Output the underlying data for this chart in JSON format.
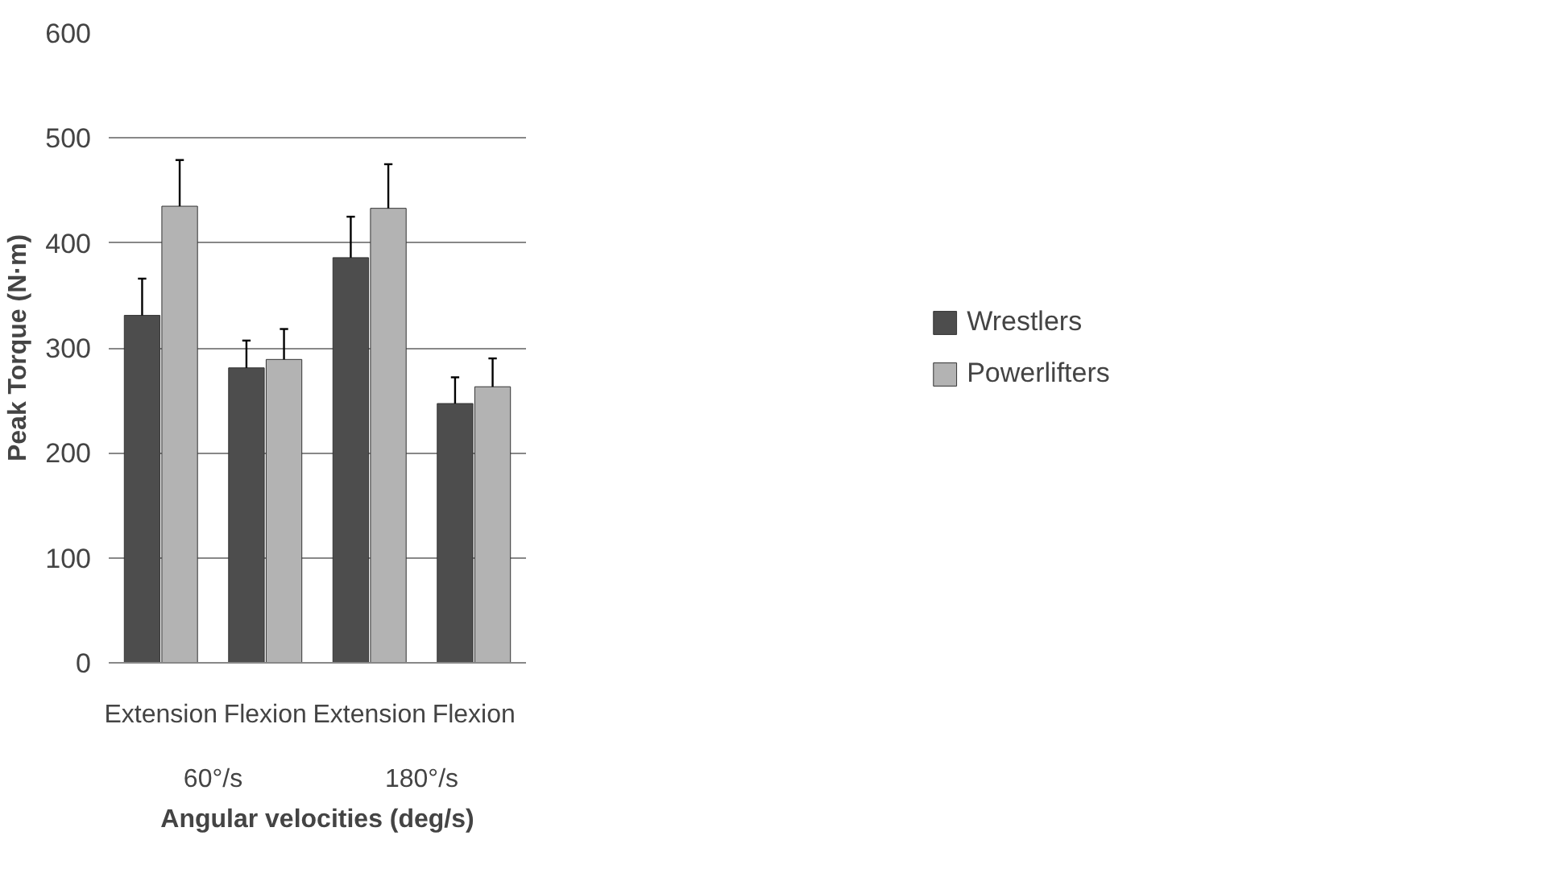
{
  "chart_data": {
    "type": "bar",
    "xlabel": "Angular velocities (deg/s)",
    "ylabel": "Peak Torque (N·m)",
    "categories": [
      "Extension",
      "Flexion",
      "Extension",
      "Flexion"
    ],
    "annotations": [
      "60°/s",
      "180°/s"
    ],
    "series": [
      {
        "name": "Wrestlers",
        "color": "#4d4d4d",
        "values": [
          331,
          281,
          386,
          247
        ],
        "errors": [
          [
            331,
            366
          ],
          [
            281,
            307
          ],
          [
            386,
            425
          ],
          [
            247,
            272
          ]
        ]
      },
      {
        "name": "Powerlifters",
        "color": "#b3b3b3",
        "values": [
          435,
          289,
          433,
          263
        ],
        "errors": [
          [
            435,
            479
          ],
          [
            289,
            318
          ],
          [
            433,
            475
          ],
          [
            263,
            290
          ]
        ]
      }
    ],
    "ylim": [
      0,
      600
    ],
    "yticks": [
      0,
      100,
      200,
      300,
      400,
      500,
      600
    ],
    "grid": "y",
    "legend": "right"
  }
}
